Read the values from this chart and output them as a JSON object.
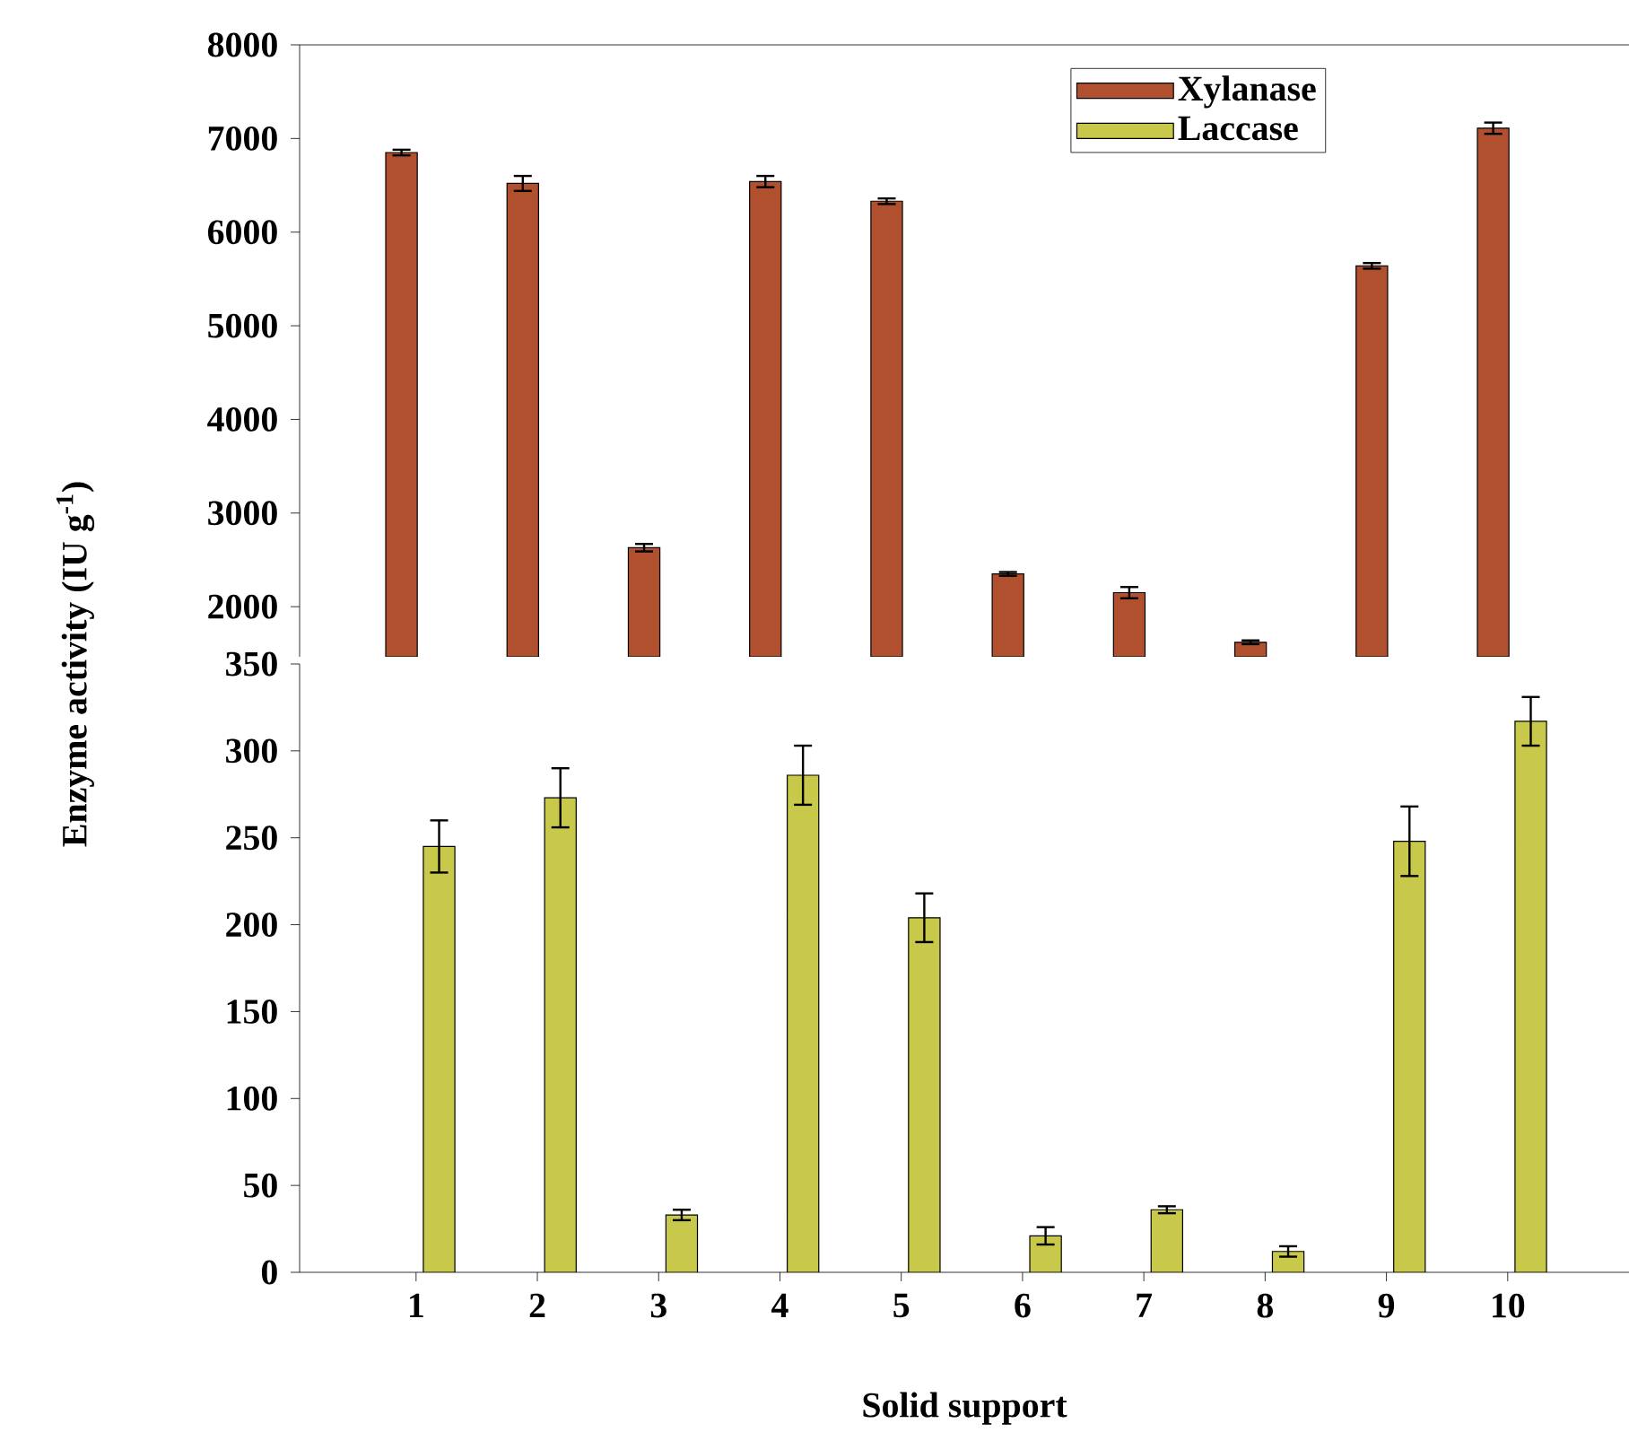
{
  "chart_data": [
    {
      "type": "bar",
      "categories": [
        "1",
        "2",
        "3",
        "4",
        "5",
        "6",
        "7",
        "8",
        "9",
        "10"
      ],
      "ylim": [
        1465,
        8000
      ],
      "yticks": [
        2000,
        3000,
        4000,
        5000,
        6000,
        7000,
        8000
      ],
      "tick_labels": "y",
      "legend": "top right",
      "series": [
        {
          "name": "Xylanase",
          "color": "#b0502e",
          "values": [
            6850,
            6520,
            2630,
            6540,
            6330,
            2350,
            2150,
            1620,
            5640,
            7110
          ],
          "errors": [
            30,
            80,
            40,
            60,
            30,
            20,
            60,
            20,
            30,
            60
          ]
        },
        {
          "name": "Laccase",
          "color": "#c8c84a",
          "values": [
            null,
            null,
            null,
            null,
            null,
            null,
            null,
            null,
            null,
            null
          ]
        }
      ]
    },
    {
      "type": "bar",
      "categories": [
        "1",
        "2",
        "3",
        "4",
        "5",
        "6",
        "7",
        "8",
        "9",
        "10"
      ],
      "ylim": [
        0,
        350
      ],
      "yticks": [
        0,
        50,
        100,
        150,
        200,
        250,
        300,
        350
      ],
      "xlabel": "Solid support",
      "ylabel": "Enzyme activity (IU g$^{-1}$)",
      "series": [
        {
          "color": "#b0502e",
          "values": [
            null,
            null,
            null,
            null,
            null,
            null,
            null,
            null,
            null,
            null
          ]
        },
        {
          "color": "#c8c84a",
          "values": [
            245,
            273,
            33,
            286,
            204,
            21,
            36,
            12,
            248,
            317
          ],
          "errors": [
            15,
            17,
            3,
            17,
            14,
            5,
            2,
            3,
            20,
            14
          ]
        }
      ]
    }
  ]
}
